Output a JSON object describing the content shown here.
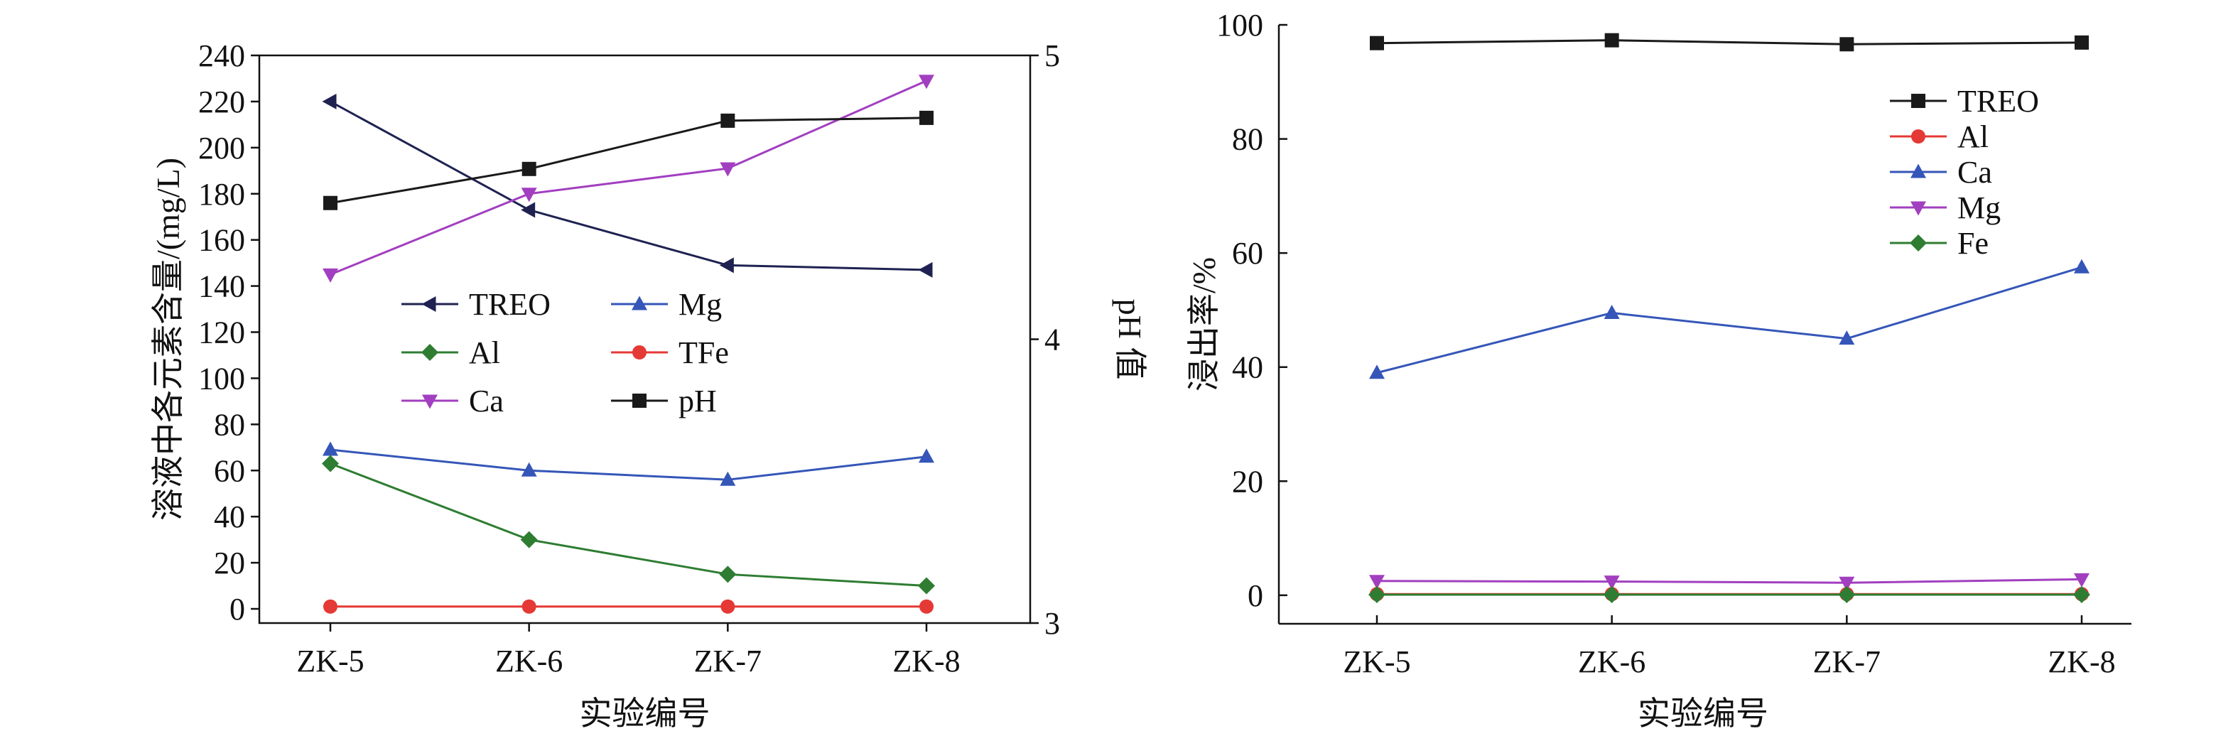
{
  "chart_data": [
    {
      "type": "line",
      "categories": [
        "ZK-5",
        "ZK-6",
        "ZK-7",
        "ZK-8"
      ],
      "xlabel": "实验编号",
      "ylabel": "溶液中各元素含量/(mg/L)",
      "ylim": [
        0,
        240
      ],
      "yticks": [
        "0",
        "20",
        "40",
        "60",
        "80",
        "100",
        "120",
        "140",
        "160",
        "180",
        "200",
        "220",
        "240"
      ],
      "y2label": "pH 值",
      "y2lim": [
        3,
        5
      ],
      "y2ticks": [
        "3",
        "4",
        "5"
      ],
      "legend_position": "center",
      "series": [
        {
          "name": "TREO",
          "axis": "left",
          "color": "#1f2251",
          "marker": "triangle-left",
          "values": [
            220,
            173,
            149,
            147
          ]
        },
        {
          "name": "Mg",
          "axis": "left",
          "color": "#3556b8",
          "marker": "triangle-up",
          "values": [
            69,
            60,
            56,
            66
          ]
        },
        {
          "name": "Al",
          "axis": "left",
          "color": "#2e7d32",
          "marker": "diamond",
          "values": [
            63,
            30,
            15,
            10
          ]
        },
        {
          "name": "TFe",
          "axis": "left",
          "color": "#e53935",
          "marker": "circle",
          "values": [
            1,
            1,
            1,
            1
          ]
        },
        {
          "name": "Ca",
          "axis": "left",
          "color": "#a23fc0",
          "marker": "triangle-down",
          "values": [
            145,
            180,
            191,
            229
          ]
        },
        {
          "name": "pH",
          "axis": "right",
          "color": "#1a1a1a",
          "marker": "square",
          "values": [
            4.48,
            4.6,
            4.77,
            4.78
          ]
        }
      ]
    },
    {
      "type": "line",
      "categories": [
        "ZK-5",
        "ZK-6",
        "ZK-7",
        "ZK-8"
      ],
      "xlabel": "实验编号",
      "ylabel": "浸出率/%",
      "ylim": [
        -5,
        100
      ],
      "yticks": [
        "0",
        "20",
        "40",
        "60",
        "80",
        "100"
      ],
      "legend_position": "top-right",
      "series": [
        {
          "name": "TREO",
          "color": "#1a1a1a",
          "marker": "square",
          "values": [
            96.8,
            97.3,
            96.6,
            96.9
          ]
        },
        {
          "name": "Al",
          "color": "#e53935",
          "marker": "circle",
          "values": [
            0.2,
            0.2,
            0.2,
            0.2
          ]
        },
        {
          "name": "Ca",
          "color": "#3556b8",
          "marker": "triangle-up",
          "values": [
            39,
            49.5,
            45,
            57.5
          ]
        },
        {
          "name": "Mg",
          "color": "#a23fc0",
          "marker": "triangle-down",
          "values": [
            2.5,
            2.4,
            2.2,
            2.8
          ]
        },
        {
          "name": "Fe",
          "color": "#2e7d32",
          "marker": "diamond",
          "values": [
            0.1,
            0.1,
            0.1,
            0.1
          ]
        }
      ]
    }
  ]
}
